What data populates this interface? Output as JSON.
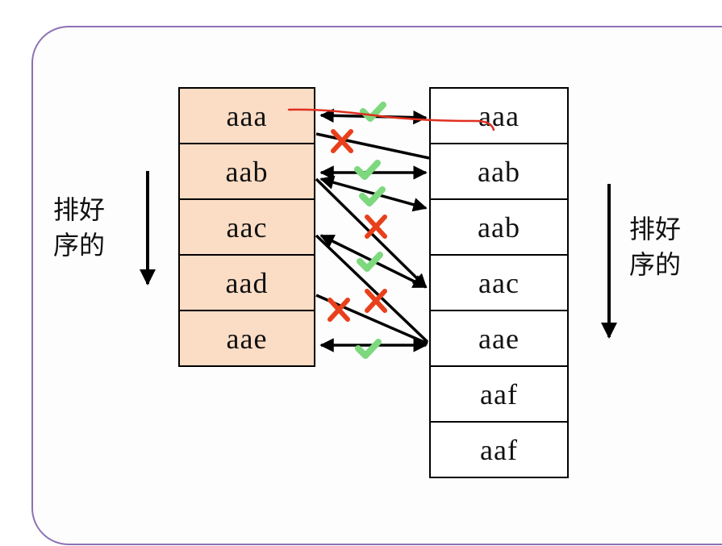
{
  "left_column": {
    "label_line1": "排好",
    "label_line2": "序的",
    "cells": [
      "aaa",
      "aab",
      "aac",
      "aad",
      "aae"
    ]
  },
  "right_column": {
    "label_line1": "排好",
    "label_line2": "序的",
    "cells": [
      "aaa",
      "aab",
      "aab",
      "aac",
      "aae",
      "aaf",
      "aaf"
    ]
  },
  "colors": {
    "left_fill": "#fbdcc4",
    "match": "#7ed87e",
    "mismatch": "#e8401c",
    "annotation": "#e03020",
    "frame": "#8c72b4"
  },
  "comparisons": [
    {
      "from": "aaa",
      "to": "aaa",
      "result": "match"
    },
    {
      "from": "aaa",
      "to": "aab",
      "result": "mismatch"
    },
    {
      "from": "aab",
      "to": "aab",
      "result": "match"
    },
    {
      "from": "aab",
      "to": "aab",
      "result": "match"
    },
    {
      "from": "aab",
      "to": "aac",
      "result": "mismatch"
    },
    {
      "from": "aac",
      "to": "aac",
      "result": "match"
    },
    {
      "from": "aac",
      "to": "aae",
      "result": "mismatch"
    },
    {
      "from": "aad",
      "to": "aae",
      "result": "mismatch"
    },
    {
      "from": "aae",
      "to": "aae",
      "result": "match"
    }
  ]
}
